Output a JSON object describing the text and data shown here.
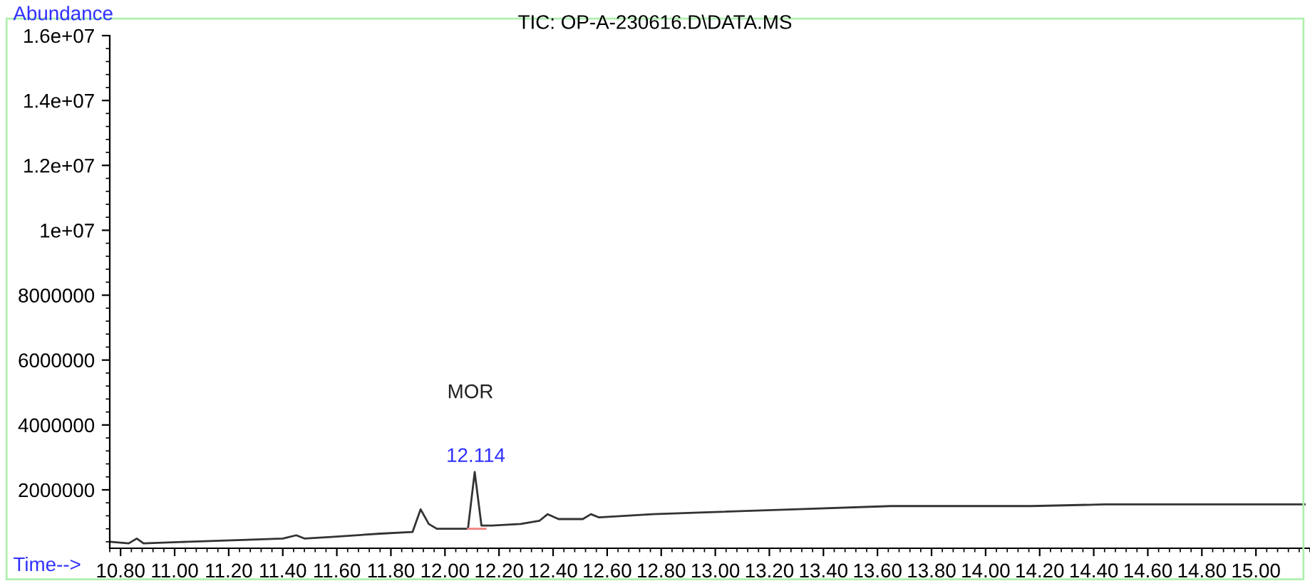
{
  "chart_data": {
    "type": "line",
    "title": "TIC: OP-A-230616.D\\DATA.MS",
    "xlabel": "Time-->",
    "ylabel": "Abundance",
    "xlim": [
      10.76,
      15.2
    ],
    "ylim": [
      200000,
      16000000
    ],
    "xticks": [
      {
        "value": 10.8,
        "label": "10.80"
      },
      {
        "value": 11.0,
        "label": "11.00"
      },
      {
        "value": 11.2,
        "label": "11.20"
      },
      {
        "value": 11.4,
        "label": "11.40"
      },
      {
        "value": 11.6,
        "label": "11.60"
      },
      {
        "value": 11.8,
        "label": "11.80"
      },
      {
        "value": 12.0,
        "label": "12.00"
      },
      {
        "value": 12.2,
        "label": "12.20"
      },
      {
        "value": 12.4,
        "label": "12.40"
      },
      {
        "value": 12.6,
        "label": "12.60"
      },
      {
        "value": 12.8,
        "label": "12.80"
      },
      {
        "value": 13.0,
        "label": "13.00"
      },
      {
        "value": 13.2,
        "label": "13.20"
      },
      {
        "value": 13.4,
        "label": "13.40"
      },
      {
        "value": 13.6,
        "label": "13.60"
      },
      {
        "value": 13.8,
        "label": "13.80"
      },
      {
        "value": 14.0,
        "label": "14.00"
      },
      {
        "value": 14.2,
        "label": "14.20"
      },
      {
        "value": 14.4,
        "label": "14.40"
      },
      {
        "value": 14.6,
        "label": "14.60"
      },
      {
        "value": 14.8,
        "label": "14.80"
      },
      {
        "value": 15.0,
        "label": "15.00"
      }
    ],
    "yticks": [
      2000000,
      4000000,
      6000000,
      8000000,
      {
        "value": 10000000,
        "label": "1e+07"
      },
      {
        "value": 12000000,
        "label": "1.2e+07"
      },
      {
        "value": 14000000,
        "label": "1.4e+07"
      },
      {
        "value": 16000000,
        "label": "1.6e+07"
      }
    ],
    "grid": false,
    "legend": false,
    "marker": "none",
    "line_style": "solid",
    "series": [
      {
        "color": "#333333",
        "x": [
          10.76,
          10.83,
          10.86,
          10.885,
          11.05,
          11.23,
          11.4,
          11.45,
          11.48,
          11.58,
          11.76,
          11.88,
          11.91,
          11.94,
          11.97,
          12.07,
          12.085,
          12.11,
          12.135,
          12.175,
          12.28,
          12.35,
          12.38,
          12.42,
          12.51,
          12.54,
          12.57,
          12.77,
          12.94,
          13.29,
          13.65,
          14.17,
          14.44,
          14.71,
          15.18
        ],
        "values": [
          400000,
          350000,
          500000,
          350000,
          400000,
          450000,
          500000,
          600000,
          500000,
          550000,
          650000,
          700000,
          1400000,
          950000,
          800000,
          800000,
          800000,
          2550000,
          900000,
          900000,
          950000,
          1050000,
          1250000,
          1100000,
          1100000,
          1250000,
          1150000,
          1250000,
          1300000,
          1400000,
          1500000,
          1500000,
          1550000,
          1550000,
          1550000
        ]
      },
      {
        "color": "#f08080",
        "x": [
          12.085,
          12.15
        ],
        "values": [
          800000,
          800000
        ]
      }
    ],
    "annotations": [
      {
        "text": "12.114",
        "x": 12.114,
        "y": 2550000
      },
      "MOR"
    ]
  }
}
